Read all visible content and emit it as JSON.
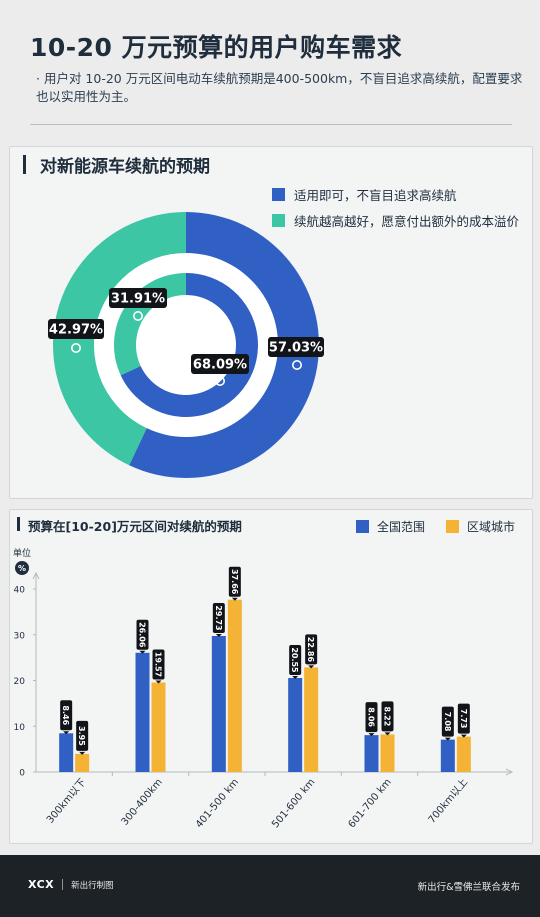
{
  "page": {
    "title": "10-20 万元预算的用户购车需求",
    "subtitle": "· 用户对 10-20 万元区间电动车续航预期是400-500km，不盲目追求高续航，配置要求也以实用性为主。"
  },
  "colors": {
    "blue": "#3160c4",
    "teal": "#3cc6a4",
    "orange": "#f5b335",
    "navy": "#1f2d3d"
  },
  "donut_card": {
    "title": "对新能源车续航的预期",
    "legend": [
      {
        "label": "适用即可，不盲目追求高续航",
        "color": "#3160c4"
      },
      {
        "label": "续航越高越好，愿意付出额外的成本溢价",
        "color": "#3cc6a4"
      }
    ]
  },
  "bar_card": {
    "title": "预算在[10-20]万元区间对续航的预期",
    "unit_label": "单位",
    "unit_symbol": "%",
    "legend": [
      {
        "label": "全国范围",
        "color": "#3160c4"
      },
      {
        "label": "区域城市",
        "color": "#f5b335"
      }
    ]
  },
  "chart_data": [
    {
      "type": "pie",
      "title": "对新能源车续航的预期",
      "rings": [
        {
          "name": "outer",
          "labels": [
            "适用即可，不盲目追求高续航",
            "续航越高越好，愿意付出额外的成本溢价"
          ],
          "values": [
            57.03,
            42.97
          ],
          "value_labels": [
            "57.03%",
            "42.97%"
          ]
        },
        {
          "name": "inner",
          "labels": [
            "适用即可，不盲目追求高续航",
            "续航越高越好，愿意付出额外的成本溢价"
          ],
          "values": [
            68.09,
            31.91
          ],
          "value_labels": [
            "68.09%",
            "31.91%"
          ]
        }
      ]
    },
    {
      "type": "bar",
      "title": "预算在[10-20]万元区间对续航的预期",
      "ylabel": "单位 %",
      "ylim": [
        0,
        40
      ],
      "yticks": [
        0,
        10,
        20,
        30,
        40
      ],
      "categories": [
        "300km以下",
        "300-400km",
        "401-500 km",
        "501-600 km",
        "601-700 km",
        "700km以上"
      ],
      "series": [
        {
          "name": "全国范围",
          "values": [
            8.46,
            26.06,
            29.73,
            20.55,
            8.06,
            7.08
          ],
          "labels": [
            "8.46",
            "26.06",
            "29.73",
            "20.55",
            "8.06",
            "7.08"
          ]
        },
        {
          "name": "区域城市",
          "values": [
            3.95,
            19.57,
            37.66,
            22.86,
            8.22,
            7.73
          ],
          "labels": [
            "3.95",
            "19.57",
            "37.66",
            "22.86",
            "8.22",
            "7.73"
          ]
        }
      ],
      "legend": "top-right",
      "grid": false
    }
  ],
  "footer": {
    "logo": "XCX",
    "brand": "新出行制图",
    "publisher": "新出行&雪佛兰联合发布"
  }
}
